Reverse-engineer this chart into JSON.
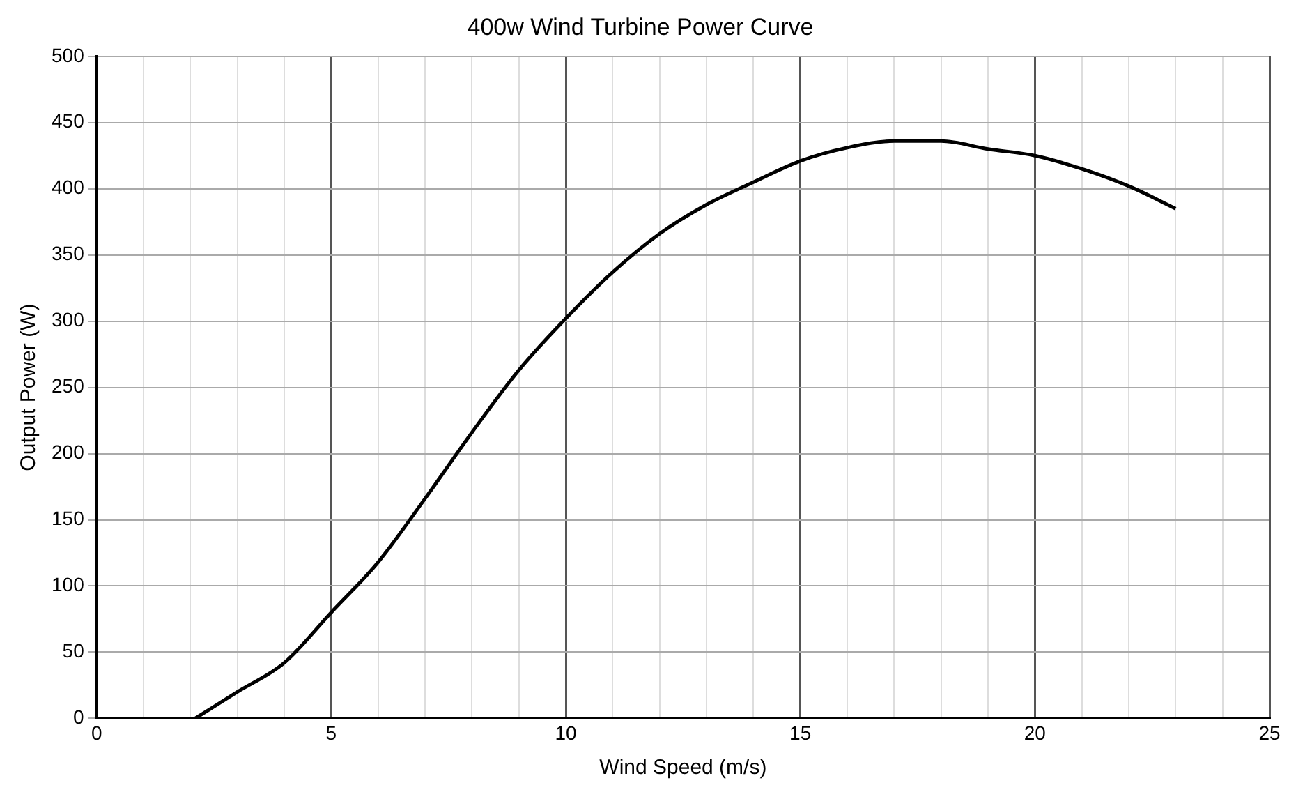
{
  "chart_data": {
    "type": "line",
    "title": "400w Wind Turbine Power Curve",
    "xlabel": "Wind Speed (m/s)",
    "ylabel": "Output Power (W)",
    "x": [
      2.1,
      3,
      4,
      5,
      6,
      7,
      8,
      9,
      10,
      11,
      12,
      13,
      14,
      15,
      16,
      17,
      18,
      19,
      20,
      21,
      22,
      23
    ],
    "series": [
      {
        "color": "#000000",
        "values": [
          0,
          20,
          42,
          80,
          118,
          166,
          216,
          263,
          302,
          337,
          366,
          388,
          405,
          421,
          431,
          436,
          436,
          430,
          425,
          415,
          402,
          385
        ]
      }
    ],
    "xlim": [
      0,
      25
    ],
    "xticks": [
      0,
      {
        "value": 1,
        "label": null
      },
      {
        "value": 2,
        "label": null
      },
      {
        "value": 3,
        "label": null
      },
      {
        "value": 4,
        "label": null
      },
      5,
      {
        "value": 6,
        "label": null
      },
      {
        "value": 7,
        "label": null
      },
      {
        "value": 8,
        "label": null
      },
      {
        "value": 9,
        "label": null
      },
      10,
      {
        "value": 11,
        "label": null
      },
      {
        "value": 12,
        "label": null
      },
      {
        "value": 13,
        "label": null
      },
      {
        "value": 14,
        "label": null
      },
      15,
      {
        "value": 16,
        "label": null
      },
      {
        "value": 17,
        "label": null
      },
      {
        "value": 18,
        "label": null
      },
      {
        "value": 19,
        "label": null
      },
      20,
      {
        "value": 21,
        "label": null
      },
      {
        "value": 22,
        "label": null
      },
      {
        "value": 23,
        "label": null
      },
      {
        "value": 24,
        "label": null
      },
      25
    ],
    "ylim": [
      0,
      500
    ],
    "yticks": [
      0,
      50,
      100,
      150,
      200,
      250,
      300,
      350,
      400,
      450,
      500
    ],
    "grid": true,
    "legend": false,
    "marker": "none",
    "line_style": "solid"
  }
}
